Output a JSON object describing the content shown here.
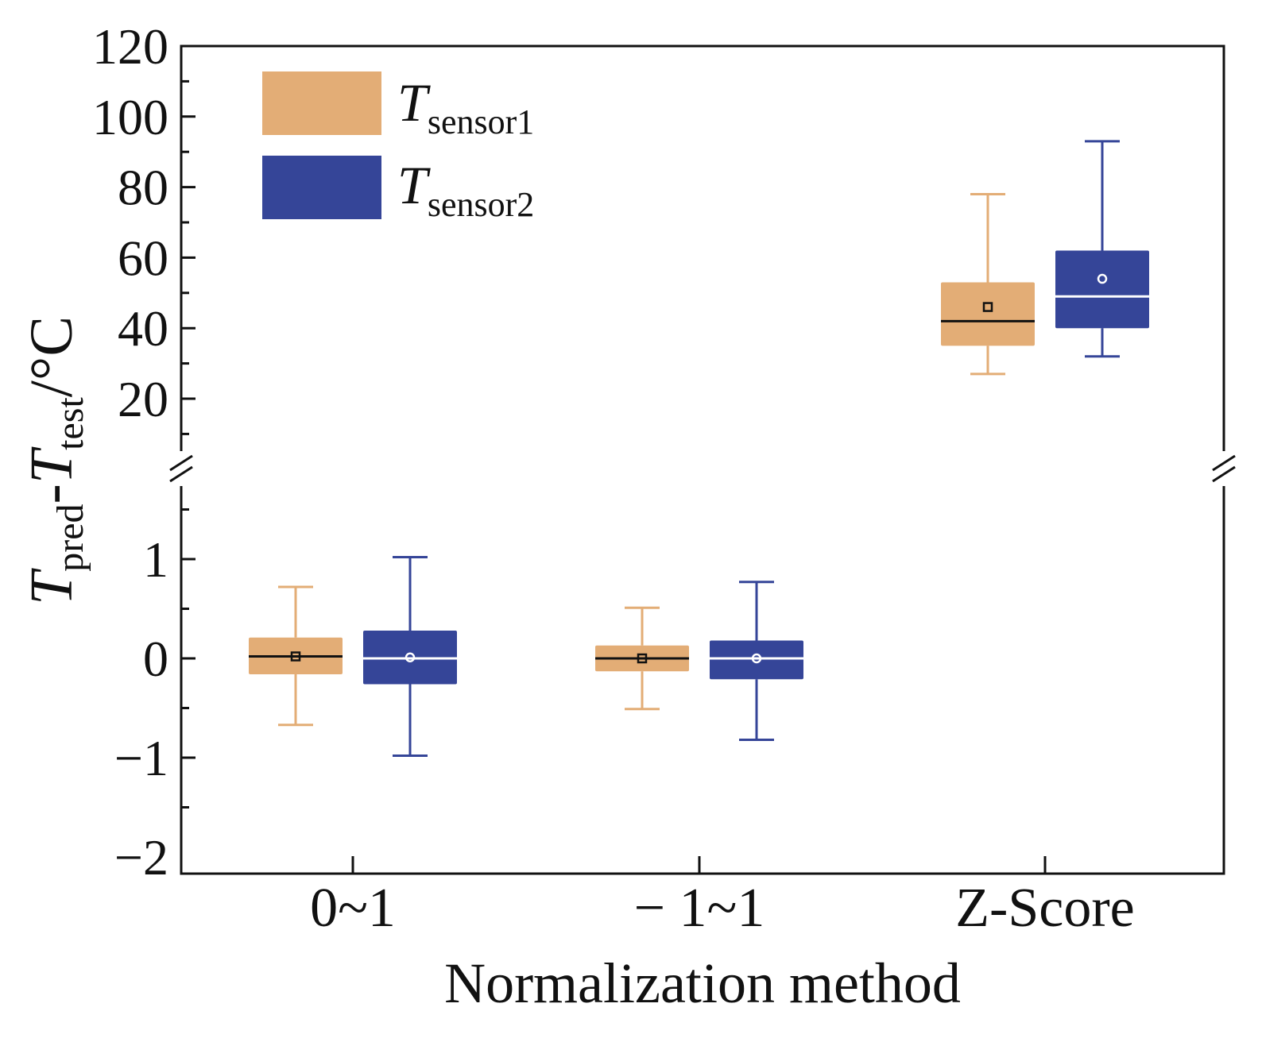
{
  "chart_data": {
    "type": "box",
    "xlabel": "Normalization method",
    "ylabel": {
      "base": "T",
      "sub1": "pred",
      "mid": "-",
      "base2": "T",
      "sub2": "test",
      "unit": "/°C"
    },
    "y_axis_break": true,
    "ylim_lower": [
      -2,
      1.9
    ],
    "ylim_upper": [
      7.5,
      120
    ],
    "yticks_lower": [
      "1",
      "0",
      "−1",
      "−2"
    ],
    "yticks_upper": [
      "120",
      "100",
      "80",
      "60",
      "40",
      "20"
    ],
    "yticks_lower_values": [
      1,
      0,
      -1,
      -2
    ],
    "yticks_upper_values": [
      120,
      100,
      80,
      60,
      40,
      20
    ],
    "categories": [
      "0~1",
      "− 1~1",
      "Z-Score"
    ],
    "legend_position": "top-left",
    "series": [
      {
        "name_base": "T",
        "name_sub": "sensor1",
        "color": "#E3AD76",
        "median_color": "#111111",
        "boxes": [
          {
            "whisker_low": -0.67,
            "q1": -0.16,
            "median": 0.02,
            "mean": 0.02,
            "q3": 0.21,
            "whisker_high": 0.72
          },
          {
            "whisker_low": -0.51,
            "q1": -0.13,
            "median": 0.0,
            "mean": 0.0,
            "q3": 0.13,
            "whisker_high": 0.51
          },
          {
            "whisker_low": 27,
            "q1": 35,
            "median": 42,
            "mean": 46,
            "q3": 53,
            "whisker_high": 78
          }
        ]
      },
      {
        "name_base": "T",
        "name_sub": "sensor2",
        "color": "#354598",
        "median_color": "#ffffff",
        "boxes": [
          {
            "whisker_low": -0.98,
            "q1": -0.26,
            "median": 0.0,
            "mean": 0.01,
            "q3": 0.28,
            "whisker_high": 1.02
          },
          {
            "whisker_low": -0.82,
            "q1": -0.21,
            "median": 0.0,
            "mean": 0.0,
            "q3": 0.18,
            "whisker_high": 0.77
          },
          {
            "whisker_low": 32,
            "q1": 40,
            "median": 49,
            "mean": 54,
            "q3": 62,
            "whisker_high": 93
          }
        ]
      }
    ]
  }
}
